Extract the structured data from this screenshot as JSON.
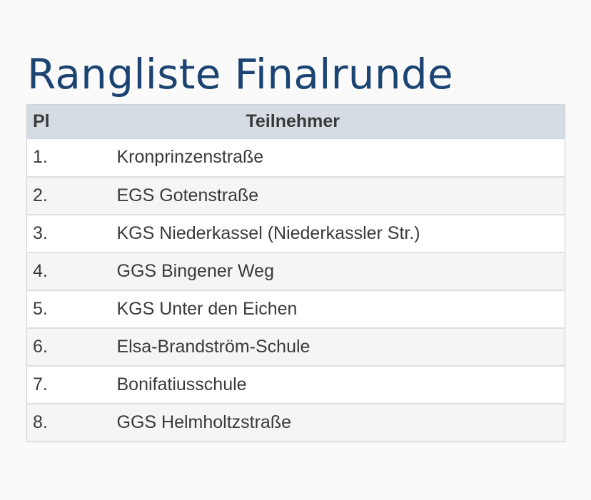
{
  "title": "Rangliste Finalrunde",
  "table": {
    "columns": [
      "Pl",
      "Teilnehmer"
    ],
    "rows": [
      {
        "place": "1.",
        "name": "Kronprinzenstraße"
      },
      {
        "place": "2.",
        "name": "EGS Gotenstraße"
      },
      {
        "place": "3.",
        "name": "KGS Niederkassel (Niederkassler Str.)"
      },
      {
        "place": "4.",
        "name": "GGS Bingener Weg"
      },
      {
        "place": "5.",
        "name": "KGS Unter den Eichen"
      },
      {
        "place": "6.",
        "name": "Elsa-Brandström-Schule"
      },
      {
        "place": "7.",
        "name": "Bonifatiusschule"
      },
      {
        "place": "8.",
        "name": "GGS Helmholtzstraße"
      }
    ]
  },
  "colors": {
    "title": "#1b4472",
    "header_bg": "#d6dce3",
    "text": "#3a3a3a",
    "row_alt": "#f5f5f5",
    "page_bg": "#fafafa"
  }
}
